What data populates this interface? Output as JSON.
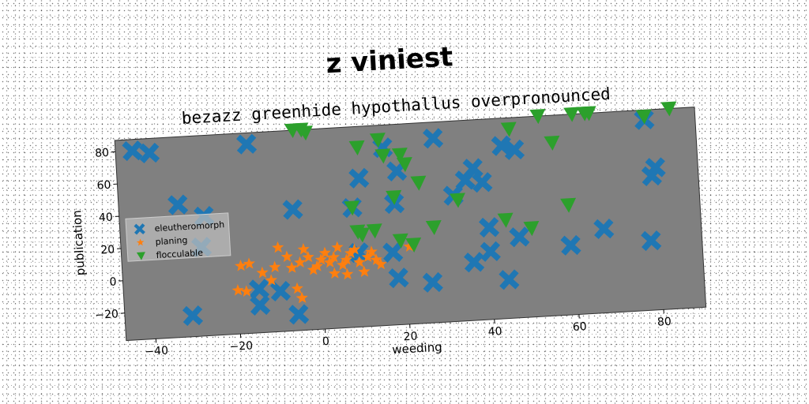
{
  "chart_data": {
    "type": "scatter",
    "suptitle": "z viniest",
    "title": "bezazz greenhide hypothallus overpronounced",
    "xlabel": "weeding",
    "ylabel": "publication",
    "xlim": [
      -47,
      90
    ],
    "ylim": [
      -37,
      87
    ],
    "xticks": [
      -40,
      -20,
      0,
      20,
      40,
      60,
      80
    ],
    "yticks": [
      -20,
      0,
      20,
      40,
      60,
      80
    ],
    "grid": false,
    "legend_position": "center-left",
    "plot_background": "#808080",
    "series": [
      {
        "name": "eleutheromorph",
        "color": "#1f77b4",
        "marker": "x",
        "points": [
          [
            -43,
            80
          ],
          [
            -39,
            78
          ],
          [
            -16,
            80
          ],
          [
            -33,
            45
          ],
          [
            -27,
            37
          ],
          [
            -28,
            18
          ],
          [
            -31,
            -24
          ],
          [
            -15,
            -10
          ],
          [
            -15,
            -20
          ],
          [
            -10,
            -12
          ],
          [
            -6,
            38
          ],
          [
            -6,
            -27
          ],
          [
            8,
            37
          ],
          [
            10,
            55
          ],
          [
            9,
            9
          ],
          [
            16,
            73
          ],
          [
            18,
            38
          ],
          [
            19,
            58
          ],
          [
            17,
            8
          ],
          [
            18,
            -8
          ],
          [
            28,
            77
          ],
          [
            32,
            41
          ],
          [
            26,
            -12
          ],
          [
            35,
            50
          ],
          [
            37,
            57
          ],
          [
            39,
            48
          ],
          [
            40,
            20
          ],
          [
            40,
            5
          ],
          [
            36,
            -1
          ],
          [
            44,
            -13
          ],
          [
            44,
            70
          ],
          [
            47,
            67
          ],
          [
            47,
            13
          ],
          [
            59,
            6
          ],
          [
            67,
            15
          ],
          [
            78,
            6
          ],
          [
            78,
            81
          ],
          [
            79,
            46
          ],
          [
            80,
            51
          ]
        ]
      },
      {
        "name": "planing",
        "color": "#ff7f0e",
        "marker": "star",
        "points": [
          [
            -19,
            5
          ],
          [
            -17,
            6
          ],
          [
            -18,
            -11
          ],
          [
            -14,
            0
          ],
          [
            -11,
            3
          ],
          [
            -10,
            15
          ],
          [
            -8,
            9
          ],
          [
            -7,
            2
          ],
          [
            -6,
            -11
          ],
          [
            -5,
            5
          ],
          [
            -4,
            13
          ],
          [
            -3,
            8
          ],
          [
            -2,
            0
          ],
          [
            -1,
            2
          ],
          [
            0,
            6
          ],
          [
            1,
            10
          ],
          [
            2,
            4
          ],
          [
            3,
            7
          ],
          [
            4,
            13
          ],
          [
            5,
            2
          ],
          [
            6,
            5
          ],
          [
            7,
            9
          ],
          [
            8,
            11
          ],
          [
            9,
            3
          ],
          [
            10,
            -3
          ],
          [
            11,
            6
          ],
          [
            12,
            9
          ],
          [
            13,
            4
          ],
          [
            14,
            1
          ],
          [
            -5,
            -17
          ],
          [
            -20,
            -10
          ],
          [
            3,
            -3
          ],
          [
            21,
            11
          ],
          [
            6,
            -4
          ],
          [
            -12,
            -5
          ]
        ]
      },
      {
        "name": "flocculable",
        "color": "#2ca02c",
        "marker": "triangle_down",
        "points": [
          [
            -5,
            88
          ],
          [
            -3,
            87
          ],
          [
            -2,
            85
          ],
          [
            8,
            37
          ],
          [
            9,
            22
          ],
          [
            10,
            74
          ],
          [
            10,
            20
          ],
          [
            13,
            22
          ],
          [
            15,
            78
          ],
          [
            16,
            68
          ],
          [
            18,
            42
          ],
          [
            19,
            15
          ],
          [
            20,
            68
          ],
          [
            21,
            62
          ],
          [
            22,
            12
          ],
          [
            24,
            50
          ],
          [
            27,
            22
          ],
          [
            33,
            38
          ],
          [
            44,
            24
          ],
          [
            46,
            80
          ],
          [
            50,
            18
          ],
          [
            53,
            91
          ],
          [
            56,
            70
          ],
          [
            61,
            88
          ],
          [
            59,
            31
          ],
          [
            64,
            92
          ],
          [
            65,
            96
          ],
          [
            78,
            83
          ],
          [
            84,
            89
          ]
        ]
      }
    ]
  }
}
